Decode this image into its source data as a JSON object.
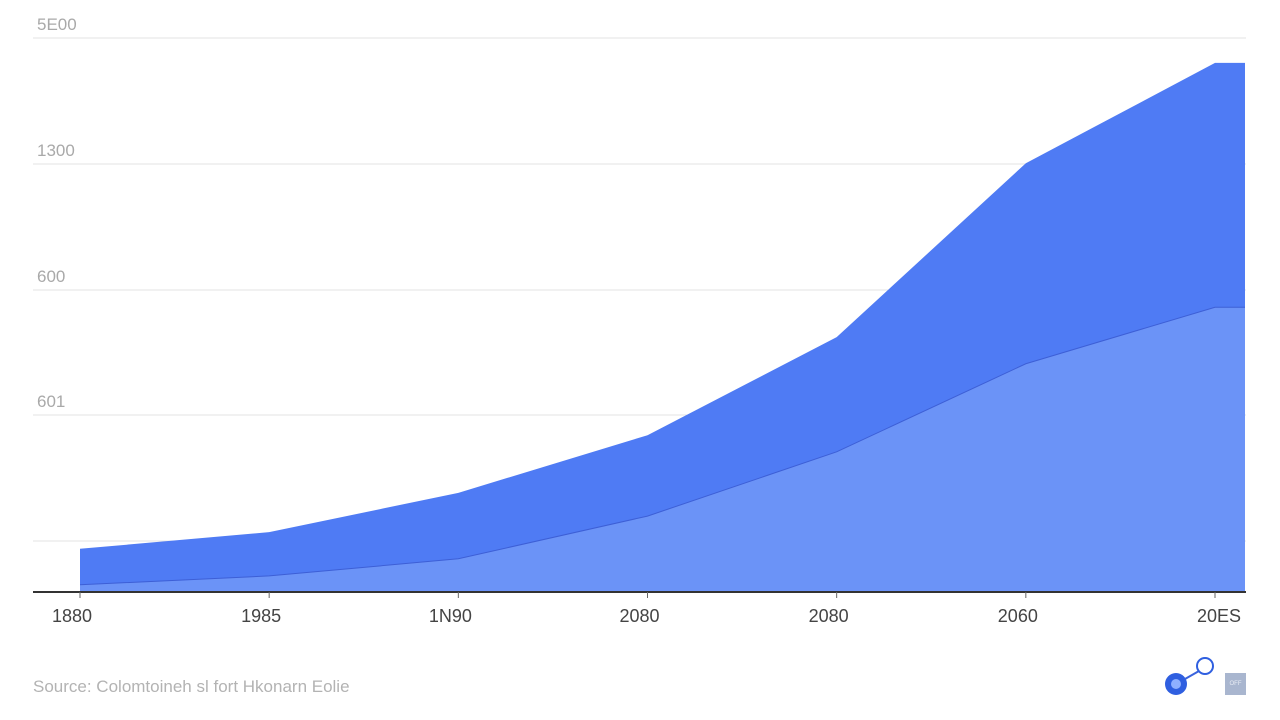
{
  "chart_data": {
    "type": "area",
    "title": "",
    "xlabel": "",
    "ylabel": "",
    "x_tick_labels": [
      "1880",
      "1985",
      "1N90",
      "2080",
      "2080",
      "2060",
      "20ES"
    ],
    "y_tick_labels": [
      "5E00",
      "1300",
      "600",
      "601",
      ""
    ],
    "y_units_note_scale": [
      0,
      100
    ],
    "grid": true,
    "series": [
      {
        "values": [
          7.8,
          10.8,
          17.9,
          28.3,
          46.0,
          77.4,
          95.5
        ],
        "color": "#4f7bf4"
      },
      {
        "values": [
          1.3,
          2.9,
          6.0,
          13.7,
          25.3,
          41.2,
          51.4
        ],
        "color": "#6b93f7"
      }
    ],
    "ylim": [
      0,
      100
    ]
  },
  "footer": {
    "source": "Source:  Colomtoineh sl fort Hkonarn Eolie",
    "badge_text": "OFF"
  },
  "colors": {
    "axis": "#333333",
    "grid": "#e3e3e3",
    "boundary": "#3d5fd6"
  }
}
